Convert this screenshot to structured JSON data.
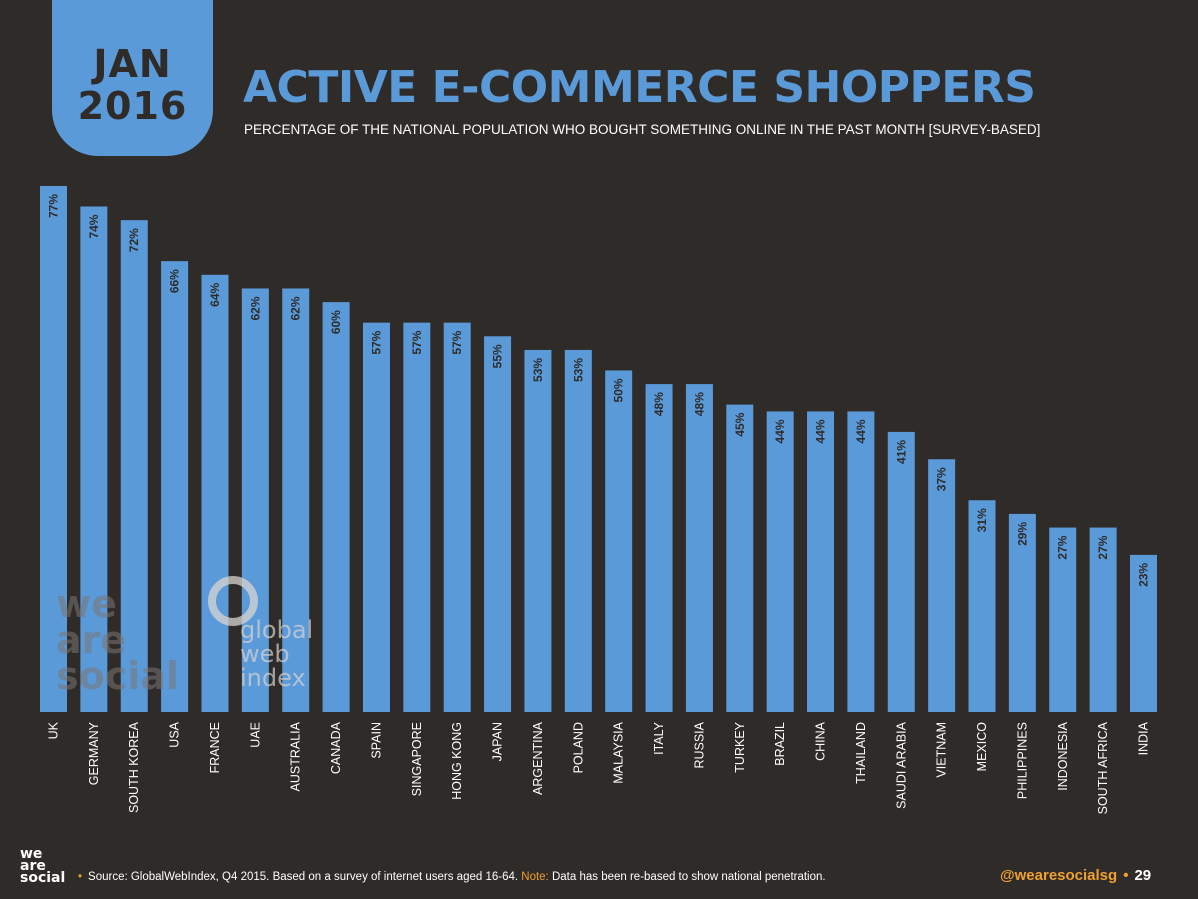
{
  "header": {
    "month": "JAN",
    "year": "2016",
    "title": "ACTIVE E-COMMERCE SHOPPERS",
    "subtitle": "PERCENTAGE OF THE NATIONAL POPULATION WHO BOUGHT SOMETHING ONLINE IN THE PAST MONTH [SURVEY-BASED]"
  },
  "watermarks": {
    "we_are_social": [
      "we",
      "are",
      "social"
    ],
    "global_web_index": [
      "global",
      "web",
      "index"
    ]
  },
  "footer": {
    "logo": [
      "we",
      "are",
      "social"
    ],
    "source_label": "Source: GlobalWebIndex, Q4 2015. Based on a survey of internet users aged 16-64.",
    "note_label": "Note:",
    "note_text": "Data has been re-based to show national penetration.",
    "handle": "@wearesocialsg",
    "page_number": "29"
  },
  "colors": {
    "background": "#2f2b28",
    "bar": "#5b9ad9",
    "accent": "#f0a030",
    "text": "#ffffff"
  },
  "chart_data": {
    "type": "bar",
    "categories": [
      "UK",
      "GERMANY",
      "SOUTH KOREA",
      "USA",
      "FRANCE",
      "UAE",
      "AUSTRALIA",
      "CANADA",
      "SPAIN",
      "SINGAPORE",
      "HONG KONG",
      "JAPAN",
      "ARGENTINA",
      "POLAND",
      "MALAYSIA",
      "ITALY",
      "RUSSIA",
      "TURKEY",
      "BRAZIL",
      "CHINA",
      "THAILAND",
      "SAUDI ARABIA",
      "VIETNAM",
      "MEXICO",
      "PHILIPPINES",
      "INDONESIA",
      "SOUTH AFRICA",
      "INDIA"
    ],
    "values": [
      77,
      74,
      72,
      66,
      64,
      62,
      62,
      60,
      57,
      57,
      57,
      55,
      53,
      53,
      50,
      48,
      48,
      45,
      44,
      44,
      44,
      41,
      37,
      31,
      29,
      27,
      27,
      23
    ],
    "value_suffix": "%",
    "title": "ACTIVE E-COMMERCE SHOPPERS",
    "xlabel": "",
    "ylabel": "",
    "ylim": [
      0,
      77
    ],
    "grid": false,
    "legend": "none"
  }
}
